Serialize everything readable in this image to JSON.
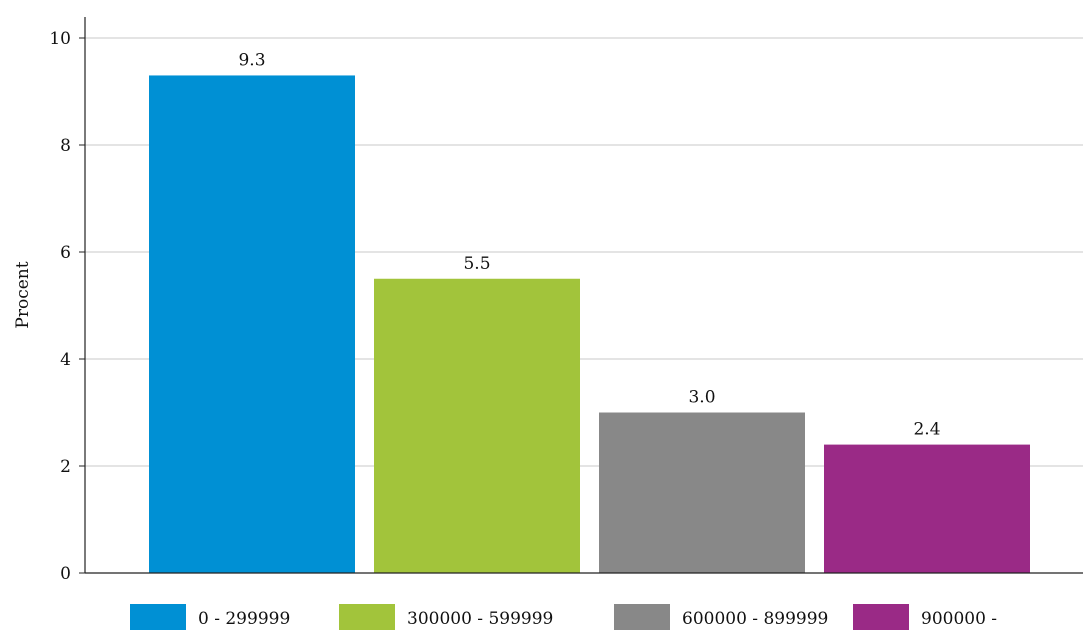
{
  "chart_data": {
    "type": "bar",
    "categories": [
      "0 - 299999",
      "300000 - 599999",
      "600000 - 899999",
      "900000 -"
    ],
    "values": [
      9.3,
      5.5,
      3.0,
      2.4
    ],
    "value_labels": [
      "9.3",
      "5.5",
      "3.0",
      "2.4"
    ],
    "colors": [
      "#0090d4",
      "#a2c43b",
      "#888888",
      "#9a2a86"
    ],
    "ylabel": "Procent",
    "xlabel": "",
    "ylim": [
      0,
      10
    ],
    "yticks": [
      0,
      2,
      4,
      6,
      8,
      10
    ],
    "ytick_labels": [
      "0",
      "2",
      "4",
      "6",
      "8",
      "10"
    ],
    "grid": true,
    "legend": {
      "placement": "bottom",
      "entries": [
        "0 - 299999",
        "300000 - 599999",
        "600000 - 899999",
        "900000 -"
      ]
    }
  }
}
